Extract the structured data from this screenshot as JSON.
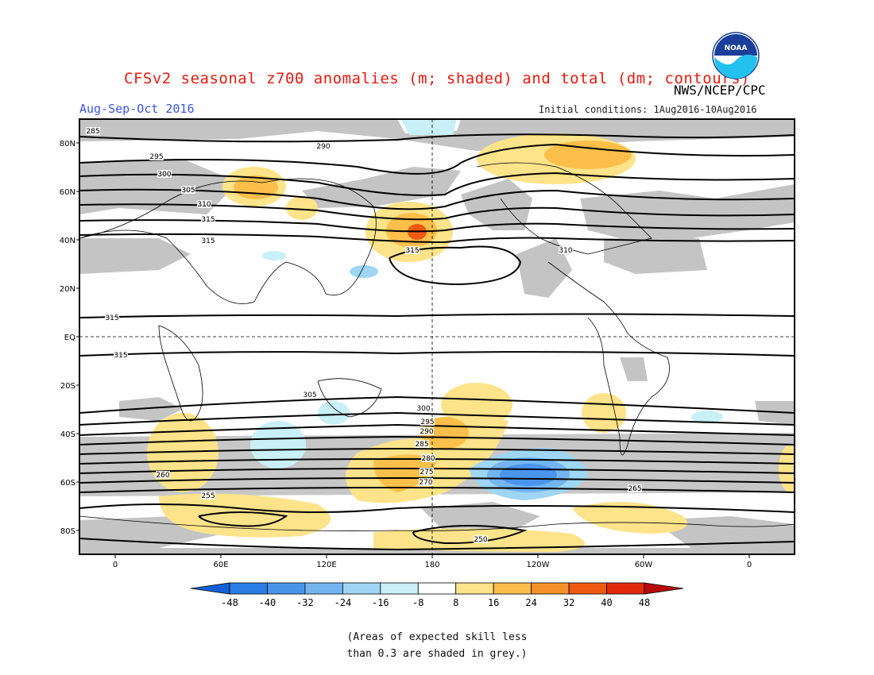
{
  "header": {
    "title": "CFSv2 seasonal z700 anomalies (m; shaded) and total (dm; contours)",
    "season": "Aug-Sep-Oct 2016",
    "initial_conditions": "Initial conditions: 1Aug2016-10Aug2016",
    "agency": "NWS/NCEP/CPC",
    "logo_text": "NOAA"
  },
  "map": {
    "lat_labels": [
      "80N",
      "60N",
      "40N",
      "20N",
      "EQ",
      "20S",
      "40S",
      "60S",
      "80S"
    ],
    "lon_labels": [
      "0",
      "60E",
      "120E",
      "180",
      "120W",
      "60W",
      "0"
    ],
    "contour_labels": [
      "285",
      "290",
      "295",
      "300",
      "305",
      "310",
      "315",
      "315",
      "315",
      "315",
      "315",
      "310",
      "305",
      "300",
      "295",
      "290",
      "285",
      "280",
      "275",
      "270",
      "265",
      "260",
      "255",
      "250"
    ]
  },
  "colorbar": {
    "ticks": [
      "-48",
      "-40",
      "-32",
      "-24",
      "-16",
      "-8",
      "8",
      "16",
      "24",
      "32",
      "40",
      "48"
    ],
    "colors": [
      "#1560d8",
      "#2a7ee6",
      "#4a95ec",
      "#74b5f0",
      "#9ed6f4",
      "#c8f0f6",
      "#ffffff",
      "#fde38a",
      "#fbbf4a",
      "#f5902a",
      "#ef5a12",
      "#e02a0a",
      "#b80a0a"
    ]
  },
  "colors": {
    "title": "#e8190e",
    "season": "#3a55e8",
    "low_skill_grey": "#c4c4c4"
  },
  "note": {
    "line1": "(Areas of expected skill less",
    "line2": "than 0.3 are shaded in grey.)"
  }
}
